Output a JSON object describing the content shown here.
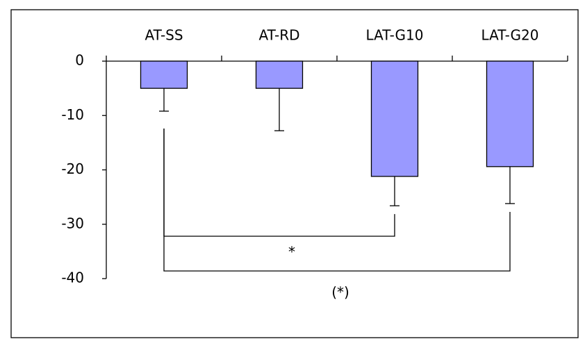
{
  "chart_data": {
    "type": "bar",
    "categories": [
      "AT-SS",
      "AT-RD",
      "LAT-G10",
      "LAT-G20"
    ],
    "values": [
      -5,
      -5,
      -21.2,
      -19.4
    ],
    "errors": [
      4.2,
      7.8,
      5.4,
      6.8
    ],
    "color": "#9999ff",
    "ylim": [
      -40,
      0
    ],
    "yticks": [
      0,
      -10,
      -20,
      -30,
      -40
    ],
    "annotations": [
      "*",
      "(*)"
    ]
  }
}
